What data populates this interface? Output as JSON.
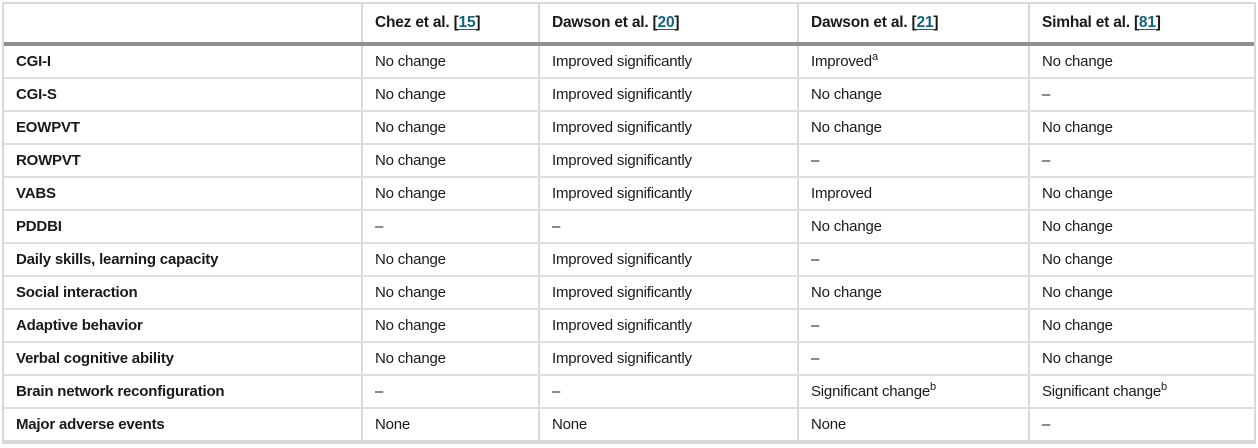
{
  "table": {
    "header": {
      "row_label_header": "",
      "bracket_open": "[",
      "bracket_close": "]",
      "studies": [
        {
          "name": "Chez et al.",
          "ref": "15"
        },
        {
          "name": "Dawson et al.",
          "ref": "20"
        },
        {
          "name": "Dawson et al.",
          "ref": "21"
        },
        {
          "name": "Simhal et al.",
          "ref": "81"
        }
      ]
    },
    "rows": [
      {
        "label": "CGI-I",
        "cells": [
          "No change",
          "Improved significantly",
          "Improved^a",
          "No change"
        ]
      },
      {
        "label": "CGI-S",
        "cells": [
          "No change",
          "Improved significantly",
          "No change",
          "–"
        ]
      },
      {
        "label": "EOWPVT",
        "cells": [
          "No change",
          "Improved significantly",
          "No change",
          "No change"
        ]
      },
      {
        "label": "ROWPVT",
        "cells": [
          "No change",
          "Improved significantly",
          "–",
          "–"
        ]
      },
      {
        "label": "VABS",
        "cells": [
          "No change",
          "Improved significantly",
          "Improved",
          "No change"
        ]
      },
      {
        "label": "PDDBI",
        "cells": [
          "–",
          "–",
          "No change",
          "No change"
        ]
      },
      {
        "label": "Daily skills, learning capacity",
        "cells": [
          "No change",
          "Improved significantly",
          "–",
          "No change"
        ]
      },
      {
        "label": "Social interaction",
        "cells": [
          "No change",
          "Improved significantly",
          "No change",
          "No change"
        ]
      },
      {
        "label": "Adaptive behavior",
        "cells": [
          "No change",
          "Improved significantly",
          "–",
          "No change"
        ]
      },
      {
        "label": "Verbal cognitive ability",
        "cells": [
          "No change",
          "Improved significantly",
          "–",
          "No change"
        ]
      },
      {
        "label": "Brain network reconfiguration",
        "cells": [
          "–",
          "–",
          "Significant change^b",
          "Significant change^b"
        ]
      },
      {
        "label": "Major adverse events",
        "cells": [
          "None",
          "None",
          "None",
          "–"
        ]
      }
    ]
  },
  "colors": {
    "text": "#1a1a1a",
    "reference_link": "#11647f",
    "header_rule": "#8f8f8f",
    "grid_line": "#d9d9d9",
    "background": "#ffffff"
  }
}
